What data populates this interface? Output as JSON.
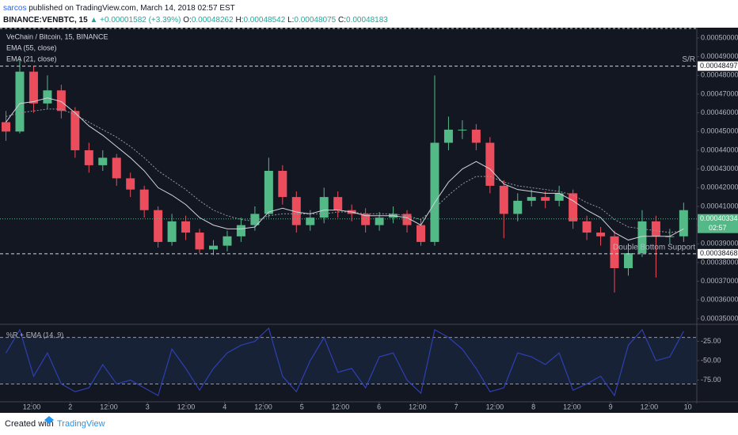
{
  "header": {
    "author": "sarcos",
    "published": "published on TradingView.com, March 14, 2018 02:57 EST",
    "symbol": "BINANCE:VENBTC, 15",
    "arrow": "▲",
    "change": "+0.00001582 (+3.39%)",
    "ohlc": [
      {
        "label": "O:",
        "value": "0.00048262"
      },
      {
        "label": "H:",
        "value": "0.00048542"
      },
      {
        "label": "L:",
        "value": "0.00048075"
      },
      {
        "label": "C:",
        "value": "0.00048183"
      }
    ]
  },
  "chart_data": [
    {
      "type": "candlestick",
      "title": "VeChain / Bitcoin, 15, BINANCE",
      "up_color": "#53b987",
      "down_color": "#eb4d5c",
      "grid": false,
      "x": [
        4,
        8.3,
        12.6,
        16.9,
        21.2,
        25.5,
        29.8,
        34.1,
        38.4,
        42.7,
        47,
        51.3,
        55.6,
        59.9,
        64.2,
        68.5,
        72.8,
        77.1,
        81.4,
        85.7,
        90,
        94.3,
        98.6,
        102.9,
        107.2,
        111.5,
        115.8,
        120.1,
        124.4,
        128.7,
        133,
        137.3,
        141.6,
        145.9,
        150.2,
        154.5,
        158.8,
        163.1,
        167.4,
        171.7,
        176,
        180.3,
        184.6,
        188.9,
        193.2,
        197.5,
        201.8,
        206.1,
        210.4,
        214.7
      ],
      "open": [
        0.000455,
        0.00045,
        0.000482,
        0.000465,
        0.000472,
        0.000461,
        0.00044,
        0.000432,
        0.000436,
        0.000425,
        0.000419,
        0.000408,
        0.000391,
        0.000402,
        0.000396,
        0.000387,
        0.000389,
        0.000394,
        0.0004,
        0.000406,
        0.000429,
        0.000415,
        0.0004,
        0.000404,
        0.000415,
        0.000408,
        0.000406,
        0.0004,
        0.000404,
        0.000406,
        0.0004,
        0.000391,
        0.000444,
        0.000451,
        0.000451,
        0.000444,
        0.000421,
        0.000406,
        0.000413,
        0.000415,
        0.000413,
        0.000417,
        0.000402,
        0.000396,
        0.000394,
        0.000377,
        0.000385,
        0.000402,
        0.000394,
        0.000394
      ],
      "high": [
        0.000461,
        0.000489,
        0.000485,
        0.00048,
        0.000475,
        0.000463,
        0.000444,
        0.00044,
        0.000438,
        0.000428,
        0.000421,
        0.00041,
        0.000406,
        0.000405,
        0.000398,
        0.000392,
        0.000397,
        0.000404,
        0.00041,
        0.000436,
        0.000432,
        0.000418,
        0.000408,
        0.00042,
        0.000418,
        0.000411,
        0.000409,
        0.000407,
        0.00041,
        0.000408,
        0.000403,
        0.00048,
        0.000458,
        0.000456,
        0.000454,
        0.000447,
        0.000424,
        0.000417,
        0.000419,
        0.000418,
        0.000421,
        0.000419,
        0.000405,
        0.000399,
        0.000397,
        0.00039,
        0.000408,
        0.000405,
        0.000398,
        0.000412
      ],
      "low": [
        0.000445,
        0.000449,
        0.00046,
        0.000462,
        0.000457,
        0.000436,
        0.000428,
        0.000429,
        0.000421,
        0.000415,
        0.000404,
        0.000388,
        0.000389,
        0.000392,
        0.000385,
        0.000384,
        0.000386,
        0.000391,
        0.000397,
        0.000404,
        0.000411,
        0.000396,
        0.000397,
        0.000401,
        0.000404,
        0.000402,
        0.000396,
        0.000397,
        0.000401,
        0.000396,
        0.000389,
        0.000389,
        0.00044,
        0.000446,
        0.00044,
        0.000417,
        0.000393,
        0.000402,
        0.00041,
        0.000409,
        0.00041,
        0.000398,
        0.000392,
        0.000389,
        0.000364,
        0.000373,
        0.000383,
        0.000372,
        0.00039,
        0.000391
      ],
      "close": [
        0.00045,
        0.000482,
        0.000465,
        0.000472,
        0.000461,
        0.00044,
        0.000432,
        0.000436,
        0.000425,
        0.000419,
        0.000408,
        0.000391,
        0.000402,
        0.000396,
        0.000387,
        0.000389,
        0.000394,
        0.0004,
        0.000406,
        0.000429,
        0.000415,
        0.0004,
        0.000404,
        0.000415,
        0.000408,
        0.000406,
        0.0004,
        0.000404,
        0.000406,
        0.0004,
        0.000391,
        0.000444,
        0.000451,
        0.000451,
        0.000444,
        0.000421,
        0.000406,
        0.000413,
        0.000415,
        0.000413,
        0.000417,
        0.000402,
        0.000396,
        0.000394,
        0.000377,
        0.000385,
        0.000402,
        0.000394,
        0.000394,
        0.000408
      ],
      "series": [
        {
          "name": "EMA (55, close)",
          "color": "#9598a1",
          "values": [
            0.000458,
            0.00046,
            0.000461,
            0.000462,
            0.000462,
            0.000459,
            0.000455,
            0.000451,
            0.000447,
            0.000442,
            0.000436,
            0.000429,
            0.000424,
            0.000419,
            0.000413,
            0.000408,
            0.000405,
            0.000403,
            0.000402,
            0.000405,
            0.000406,
            0.000406,
            0.000406,
            0.000406,
            0.000407,
            0.000407,
            0.000406,
            0.000406,
            0.000406,
            0.000405,
            0.000403,
            0.000409,
            0.000416,
            0.000422,
            0.000426,
            0.000426,
            0.000423,
            0.000421,
            0.00042,
            0.000419,
            0.000418,
            0.000416,
            0.000412,
            0.000409,
            0.000403,
            0.000399,
            0.000398,
            0.000397,
            0.000396,
            0.000397
          ]
        },
        {
          "name": "EMA (21, close)",
          "color": "#d1d4dc",
          "values": [
            0.000455,
            0.000465,
            0.000466,
            0.000468,
            0.000466,
            0.00046,
            0.000453,
            0.000448,
            0.000442,
            0.000436,
            0.000429,
            0.00042,
            0.000416,
            0.000411,
            0.000404,
            0.0004,
            0.000398,
            0.000398,
            0.000399,
            0.000407,
            0.000409,
            0.000407,
            0.000406,
            0.000408,
            0.000408,
            0.000407,
            0.000405,
            0.000405,
            0.000405,
            0.000404,
            0.0004,
            0.000412,
            0.000423,
            0.00043,
            0.000434,
            0.00043,
            0.000422,
            0.000419,
            0.000418,
            0.000417,
            0.000417,
            0.000413,
            0.000408,
            0.000404,
            0.000396,
            0.000392,
            0.000394,
            0.000394,
            0.000394,
            0.000398
          ]
        }
      ],
      "xlim": [
        2.15,
        218.8
      ],
      "xticks": [
        {
          "value": 12,
          "label": "12:00"
        },
        {
          "value": 24,
          "label": "2"
        },
        {
          "value": 36,
          "label": "12:00"
        },
        {
          "value": 48,
          "label": "3"
        },
        {
          "value": 60,
          "label": "12:00"
        },
        {
          "value": 72,
          "label": "4"
        },
        {
          "value": 84,
          "label": "12:00"
        },
        {
          "value": 96,
          "label": "5"
        },
        {
          "value": 108,
          "label": "12:00"
        },
        {
          "value": 120,
          "label": "6"
        },
        {
          "value": 132,
          "label": "12:00"
        },
        {
          "value": 144,
          "label": "7"
        },
        {
          "value": 156,
          "label": "12:00"
        },
        {
          "value": 168,
          "label": "8"
        },
        {
          "value": 180,
          "label": "12:00"
        },
        {
          "value": 192,
          "label": "9"
        },
        {
          "value": 204,
          "label": "12:00"
        },
        {
          "value": 216,
          "label": "10"
        }
      ],
      "ylim": [
        0.000347,
        0.0005055
      ],
      "yticks": [
        {
          "value": 0.00035,
          "label": "0.00035000"
        },
        {
          "value": 0.00036,
          "label": "0.00036000"
        },
        {
          "value": 0.00037,
          "label": "0.00037000"
        },
        {
          "value": 0.00038,
          "label": "0.00038000"
        },
        {
          "value": 0.00039,
          "label": "0.00039000"
        },
        {
          "value": 0.0004,
          "label": "0.00040000"
        },
        {
          "value": 0.00041,
          "label": "0.00041000"
        },
        {
          "value": 0.00042,
          "label": "0.00042000"
        },
        {
          "value": 0.00043,
          "label": "0.00043000"
        },
        {
          "value": 0.00044,
          "label": "0.00044000"
        },
        {
          "value": 0.00045,
          "label": "0.00045000"
        },
        {
          "value": 0.00046,
          "label": "0.00046000"
        },
        {
          "value": 0.00047,
          "label": "0.00047000"
        },
        {
          "value": 0.00048,
          "label": "0.00048000"
        },
        {
          "value": 0.00049,
          "label": "0.00049000"
        },
        {
          "value": 0.0005,
          "label": "0.00050000"
        }
      ],
      "levels": [
        {
          "value": 0.00048497,
          "annotation": "S/R"
        },
        {
          "value": 0.00038468,
          "annotation": "Double Bottom Support"
        }
      ],
      "last_price": {
        "value": 0.00040334,
        "countdown": "02:57",
        "color": "#53b987"
      }
    },
    {
      "type": "line",
      "title": "%R + EMA (14, 9)",
      "color": "#2f3fb0",
      "band_color": "#1c2a45",
      "values": [
        -40,
        -10,
        -70,
        -40,
        -80,
        -90,
        -85,
        -55,
        -80,
        -75,
        -85,
        -95,
        -35,
        -60,
        -88,
        -60,
        -40,
        -30,
        -25,
        -8,
        -70,
        -90,
        -50,
        -20,
        -65,
        -60,
        -85,
        -45,
        -40,
        -75,
        -92,
        -10,
        -20,
        -35,
        -60,
        -90,
        -85,
        -40,
        -45,
        -55,
        -40,
        -88,
        -80,
        -70,
        -95,
        -30,
        -10,
        -50,
        -45,
        -12
      ],
      "ylim": [
        -103,
        -3
      ],
      "yticks": [
        {
          "value": -25,
          "label": "-25.00"
        },
        {
          "value": -50,
          "label": "-50.00"
        },
        {
          "value": -75,
          "label": "-75.00"
        }
      ],
      "bands": [
        -20,
        -80
      ]
    }
  ],
  "footer": {
    "created": "Created with",
    "brand": "TradingView"
  }
}
